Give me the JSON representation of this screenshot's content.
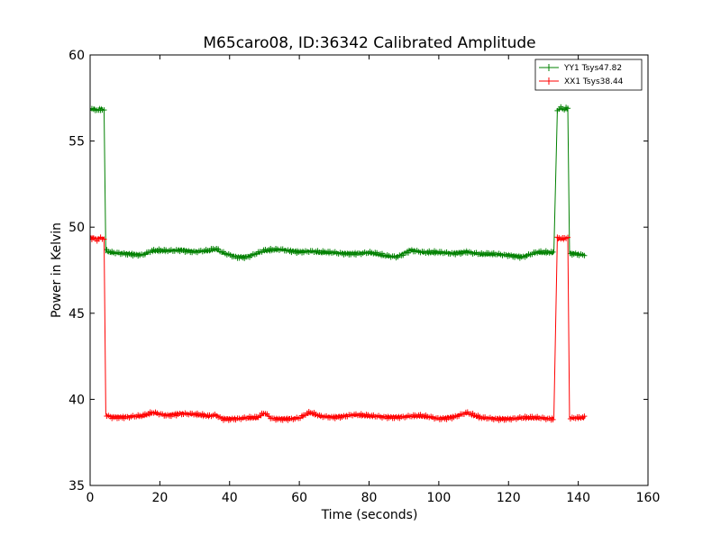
{
  "chart_data": {
    "type": "line",
    "title": "M65caro08, ID:36342 Calibrated Amplitude",
    "xlabel": "Time (seconds)",
    "ylabel": "Power in Kelvin",
    "xlim": [
      0,
      160
    ],
    "ylim": [
      35,
      60
    ],
    "xticks": [
      0,
      20,
      40,
      60,
      80,
      100,
      120,
      140,
      160
    ],
    "yticks": [
      35,
      40,
      45,
      50,
      55,
      60
    ],
    "xtick_labels": [
      "0",
      "20",
      "40",
      "60",
      "80",
      "100",
      "120",
      "140",
      "160"
    ],
    "ytick_labels": [
      "35",
      "40",
      "45",
      "50",
      "55",
      "60"
    ],
    "grid": false,
    "legend_position": "top-right",
    "marker": "+",
    "series": [
      {
        "name": "YY1 Tsys47.82",
        "color": "#008000",
        "points": [
          [
            0,
            56.8
          ],
          [
            1,
            56.9
          ],
          [
            2,
            56.8
          ],
          [
            3,
            56.9
          ],
          [
            4,
            56.8
          ],
          [
            4.5,
            48.6
          ],
          [
            6,
            48.5
          ],
          [
            10,
            48.5
          ],
          [
            15,
            48.4
          ],
          [
            18,
            48.6
          ],
          [
            22,
            48.6
          ],
          [
            26,
            48.7
          ],
          [
            30,
            48.6
          ],
          [
            34,
            48.6
          ],
          [
            36,
            48.7
          ],
          [
            38,
            48.5
          ],
          [
            42,
            48.3
          ],
          [
            45,
            48.3
          ],
          [
            50,
            48.6
          ],
          [
            55,
            48.7
          ],
          [
            60,
            48.6
          ],
          [
            63,
            48.6
          ],
          [
            66,
            48.5
          ],
          [
            70,
            48.5
          ],
          [
            75,
            48.5
          ],
          [
            80,
            48.5
          ],
          [
            85,
            48.3
          ],
          [
            88,
            48.3
          ],
          [
            92,
            48.7
          ],
          [
            96,
            48.5
          ],
          [
            100,
            48.5
          ],
          [
            104,
            48.5
          ],
          [
            108,
            48.6
          ],
          [
            112,
            48.4
          ],
          [
            116,
            48.4
          ],
          [
            120,
            48.4
          ],
          [
            124,
            48.3
          ],
          [
            128,
            48.5
          ],
          [
            131,
            48.5
          ],
          [
            133,
            48.5
          ],
          [
            134,
            56.8
          ],
          [
            135,
            56.9
          ],
          [
            136,
            56.8
          ],
          [
            137,
            56.9
          ],
          [
            137.5,
            48.5
          ],
          [
            139,
            48.5
          ],
          [
            141,
            48.4
          ],
          [
            142,
            48.4
          ]
        ]
      },
      {
        "name": "XX1 Tsys38.44",
        "color": "#ff0000",
        "points": [
          [
            0,
            49.4
          ],
          [
            1,
            49.4
          ],
          [
            2,
            49.3
          ],
          [
            3,
            49.4
          ],
          [
            4,
            49.3
          ],
          [
            4.5,
            39.1
          ],
          [
            6,
            39.0
          ],
          [
            10,
            39.0
          ],
          [
            15,
            39.0
          ],
          [
            18,
            39.2
          ],
          [
            22,
            39.1
          ],
          [
            26,
            39.2
          ],
          [
            30,
            39.1
          ],
          [
            34,
            39.0
          ],
          [
            36,
            39.1
          ],
          [
            38,
            38.9
          ],
          [
            42,
            38.9
          ],
          [
            45,
            38.9
          ],
          [
            48,
            38.9
          ],
          [
            50,
            39.2
          ],
          [
            52,
            38.9
          ],
          [
            55,
            38.9
          ],
          [
            60,
            38.9
          ],
          [
            63,
            39.2
          ],
          [
            66,
            39.0
          ],
          [
            70,
            39.0
          ],
          [
            75,
            39.1
          ],
          [
            80,
            39.0
          ],
          [
            85,
            39.0
          ],
          [
            90,
            39.0
          ],
          [
            95,
            39.0
          ],
          [
            100,
            38.9
          ],
          [
            104,
            39.0
          ],
          [
            108,
            39.2
          ],
          [
            112,
            38.9
          ],
          [
            116,
            38.9
          ],
          [
            120,
            38.9
          ],
          [
            124,
            38.9
          ],
          [
            128,
            38.9
          ],
          [
            131,
            38.9
          ],
          [
            133,
            38.9
          ],
          [
            134,
            49.3
          ],
          [
            135,
            49.3
          ],
          [
            136,
            49.3
          ],
          [
            137,
            49.4
          ],
          [
            137.5,
            38.9
          ],
          [
            139,
            38.9
          ],
          [
            141,
            38.9
          ],
          [
            142,
            38.9
          ]
        ]
      }
    ]
  }
}
